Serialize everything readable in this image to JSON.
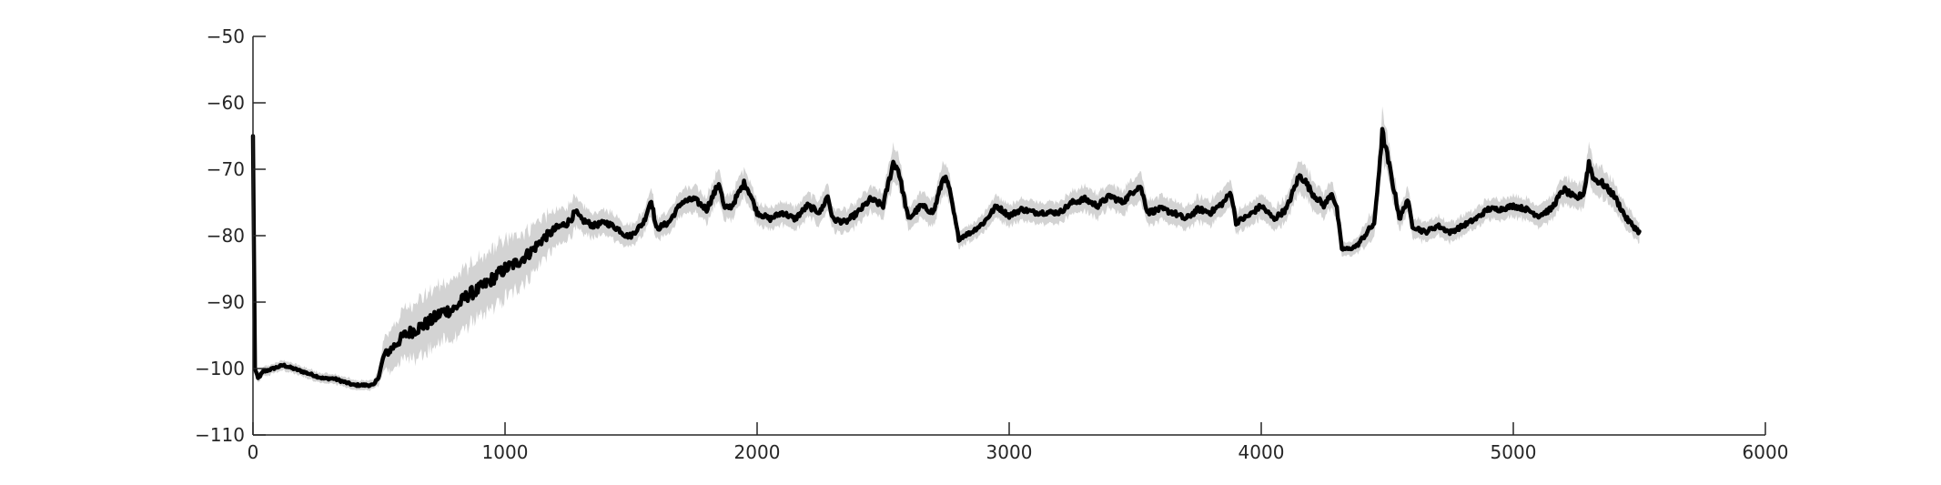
{
  "chart_data": {
    "type": "line",
    "title": "",
    "xlabel": "",
    "ylabel": "",
    "xlim": [
      0,
      6000
    ],
    "ylim": [
      -110,
      -50
    ],
    "x_ticks": [
      0,
      1000,
      2000,
      3000,
      4000,
      5000,
      6000
    ],
    "y_ticks": [
      -110,
      -100,
      -90,
      -80,
      -70,
      -60,
      -50
    ],
    "x_tick_labels": [
      "0",
      "1000",
      "2000",
      "3000",
      "4000",
      "5000",
      "6000"
    ],
    "y_tick_labels": [
      "−110",
      "−100",
      "−90",
      "−80",
      "−70",
      "−60",
      "−50"
    ],
    "grid": false,
    "legend": "none",
    "colors": {
      "line": "#000000",
      "band": "#d3d3d3",
      "axis": "#262626"
    },
    "series": [
      {
        "style": "mean-with-shaded-band",
        "x": [
          0,
          8,
          20,
          40,
          80,
          120,
          160,
          200,
          240,
          280,
          320,
          360,
          400,
          440,
          480,
          500,
          520,
          550,
          600,
          650,
          700,
          750,
          800,
          850,
          900,
          950,
          1000,
          1050,
          1100,
          1150,
          1200,
          1250,
          1280,
          1300,
          1350,
          1400,
          1450,
          1480,
          1500,
          1550,
          1580,
          1600,
          1650,
          1700,
          1750,
          1800,
          1850,
          1870,
          1900,
          1950,
          1970,
          2000,
          2050,
          2100,
          2150,
          2200,
          2250,
          2280,
          2300,
          2350,
          2400,
          2450,
          2500,
          2540,
          2560,
          2600,
          2650,
          2700,
          2740,
          2760,
          2800,
          2820,
          2850,
          2900,
          2950,
          3000,
          3050,
          3100,
          3150,
          3200,
          3250,
          3300,
          3350,
          3400,
          3450,
          3500,
          3520,
          3550,
          3600,
          3650,
          3700,
          3750,
          3800,
          3850,
          3880,
          3900,
          3950,
          4000,
          4050,
          4100,
          4150,
          4170,
          4200,
          4250,
          4280,
          4300,
          4320,
          4350,
          4380,
          4400,
          4450,
          4480,
          4500,
          4550,
          4580,
          4600,
          4650,
          4700,
          4750,
          4800,
          4850,
          4900,
          4950,
          5000,
          5050,
          5100,
          5150,
          5200,
          5250,
          5280,
          5300,
          5320,
          5350,
          5400,
          5450,
          5500
        ],
        "mean": [
          -65,
          -100,
          -101.5,
          -100.5,
          -100,
          -99.5,
          -100,
          -100.5,
          -101,
          -101.5,
          -101.5,
          -102,
          -102.5,
          -102.5,
          -102.5,
          -101,
          -98,
          -97,
          -95,
          -94,
          -93,
          -91.5,
          -91,
          -89,
          -88,
          -86.5,
          -85,
          -84,
          -82.5,
          -80.5,
          -79,
          -78,
          -76.5,
          -77.5,
          -78.5,
          -78,
          -79,
          -80,
          -80,
          -78,
          -74.5,
          -79,
          -78,
          -75,
          -74.5,
          -76,
          -72,
          -76,
          -75.5,
          -72,
          -73.5,
          -76.5,
          -77.5,
          -76.5,
          -77.5,
          -75.5,
          -76.5,
          -74,
          -77.5,
          -78,
          -76.5,
          -74.5,
          -75.5,
          -69,
          -70,
          -77.5,
          -75.5,
          -76.5,
          -71,
          -72.5,
          -80.5,
          -80,
          -79.5,
          -78,
          -75.5,
          -77,
          -76,
          -76.5,
          -76.5,
          -76.5,
          -75,
          -74.5,
          -75.5,
          -74,
          -75,
          -73,
          -72.5,
          -76.5,
          -76,
          -76.5,
          -77.5,
          -76,
          -76.5,
          -75,
          -73.5,
          -78,
          -77,
          -75.5,
          -77.5,
          -76,
          -71,
          -71.5,
          -73.5,
          -75.5,
          -73.5,
          -76,
          -82,
          -82,
          -81.5,
          -80.5,
          -78,
          -64.5,
          -68,
          -77.5,
          -74.5,
          -78.5,
          -79.5,
          -78.5,
          -79.5,
          -78.5,
          -77.5,
          -76,
          -76,
          -75.5,
          -76,
          -77,
          -76,
          -73,
          -74.5,
          -73.5,
          -69,
          -71.5,
          -72,
          -74,
          -77.5,
          -79.5
        ],
        "band_half_width": [
          0.5,
          0.5,
          0.6,
          0.6,
          0.6,
          0.6,
          0.6,
          0.6,
          0.6,
          0.6,
          0.6,
          0.6,
          0.6,
          0.6,
          0.6,
          1,
          2,
          2.5,
          3,
          3.5,
          3.5,
          3.5,
          3.5,
          3.5,
          3.5,
          3.5,
          3.5,
          3.2,
          3,
          2.6,
          2.2,
          2,
          2,
          1.8,
          1.5,
          1.5,
          1.5,
          1.3,
          1.3,
          1.4,
          1.8,
          1.4,
          1.4,
          1.5,
          1.6,
          1.6,
          2,
          1.6,
          1.6,
          1.8,
          1.6,
          1.4,
          1.4,
          1.4,
          1.4,
          1.5,
          1.5,
          1.6,
          1.4,
          1.4,
          1.5,
          1.6,
          1.6,
          2.2,
          2,
          1.5,
          1.6,
          1.6,
          2,
          1.8,
          1,
          1,
          1,
          1.2,
          1.4,
          1.3,
          1.3,
          1.3,
          1.3,
          1.3,
          1.4,
          1.5,
          1.5,
          1.5,
          1.5,
          1.6,
          1.7,
          1.5,
          1.5,
          1.5,
          1.4,
          1.5,
          1.5,
          1.5,
          1.7,
          1.3,
          1.4,
          1.5,
          1.4,
          1.5,
          2,
          2,
          1.7,
          1.5,
          1.6,
          1.4,
          0.8,
          0.8,
          0.9,
          1.2,
          1.8,
          2.8,
          2.4,
          1.5,
          1.6,
          1.3,
          1.2,
          1.2,
          1.2,
          1.2,
          1.2,
          1.3,
          1.3,
          1.3,
          1.3,
          1.3,
          1.4,
          1.7,
          1.6,
          1.7,
          2.2,
          1.9,
          1.8,
          1.6,
          1.4,
          1.2
        ]
      }
    ]
  }
}
